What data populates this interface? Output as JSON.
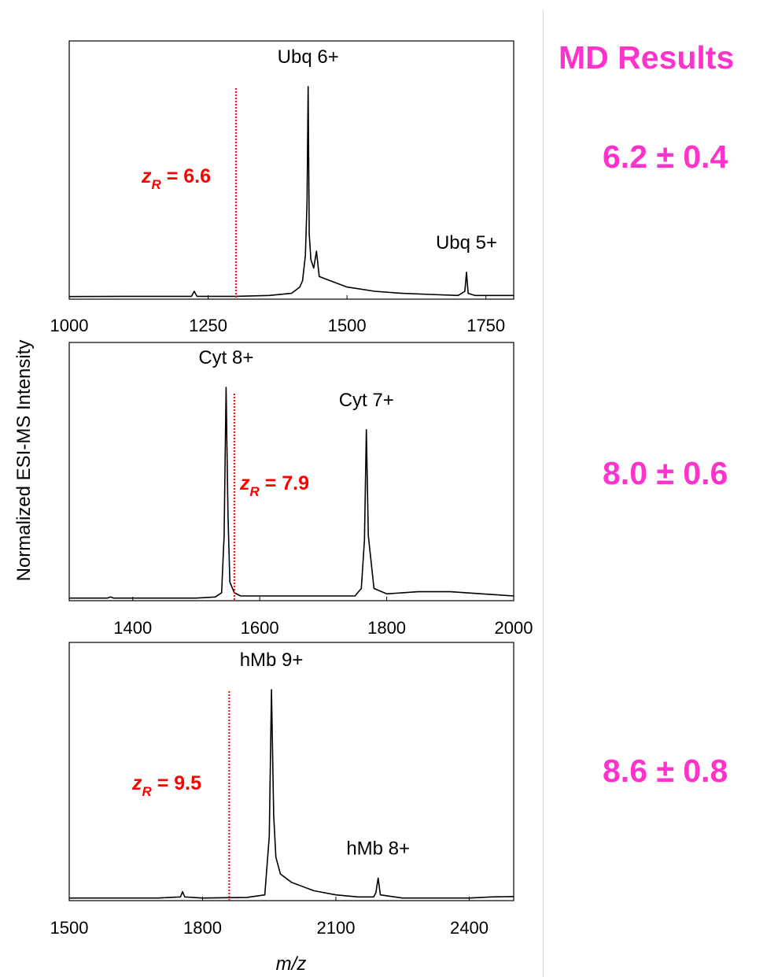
{
  "figure": {
    "ylabel": "Normalized ESI-MS Intensity",
    "xlabel": "m/z"
  },
  "md_results": {
    "title": "MD Results",
    "values": [
      "6.2 ± 0.4",
      "8.0 ± 0.6",
      "8.6 ± 0.8"
    ]
  },
  "colors": {
    "trace": "#000000",
    "annotation_red": "#ff0000",
    "md_pink": "#ff33cc"
  },
  "chart_data": [
    {
      "type": "line",
      "xlim": [
        1000,
        1800
      ],
      "ylim": [
        0,
        1
      ],
      "xticks": [
        1000,
        1250,
        1500,
        1750
      ],
      "grid": false,
      "peak_labels": [
        {
          "text": "Ubq 6+",
          "x": 1430,
          "y": 1.0
        },
        {
          "text": "Ubq 5+",
          "x": 1715,
          "y": 0.12
        }
      ],
      "zR": {
        "subscript": "R",
        "value": "6.6",
        "text": "= 6.6",
        "x": 1300
      },
      "x": [
        1000,
        1100,
        1220,
        1225,
        1230,
        1300,
        1360,
        1400,
        1415,
        1420,
        1425,
        1428,
        1430,
        1432,
        1435,
        1440,
        1445,
        1450,
        1470,
        1500,
        1550,
        1600,
        1650,
        1700,
        1712,
        1715,
        1718,
        1730,
        1800
      ],
      "y": [
        0.005,
        0.006,
        0.006,
        0.03,
        0.006,
        0.006,
        0.01,
        0.02,
        0.05,
        0.08,
        0.2,
        0.45,
        1.0,
        0.3,
        0.18,
        0.14,
        0.22,
        0.1,
        0.08,
        0.05,
        0.03,
        0.02,
        0.015,
        0.01,
        0.03,
        0.12,
        0.02,
        0.01,
        0.01
      ]
    },
    {
      "type": "line",
      "xlim": [
        1300,
        2000
      ],
      "ylim": [
        0,
        1
      ],
      "xticks": [
        1400,
        1600,
        1800,
        2000
      ],
      "grid": false,
      "peak_labels": [
        {
          "text": "Cyt 8+",
          "x": 1547,
          "y": 1.0
        },
        {
          "text": "Cyt 7+",
          "x": 1768,
          "y": 0.8
        }
      ],
      "zR": {
        "subscript": "R",
        "value": "7.9",
        "text": "= 7.9",
        "x": 1560
      },
      "x": [
        1300,
        1360,
        1365,
        1370,
        1500,
        1530,
        1540,
        1544,
        1547,
        1550,
        1553,
        1560,
        1570,
        1600,
        1650,
        1700,
        1750,
        1760,
        1765,
        1768,
        1771,
        1780,
        1800,
        1850,
        1900,
        1950,
        2000
      ],
      "y": [
        0.005,
        0.005,
        0.01,
        0.005,
        0.005,
        0.01,
        0.03,
        0.3,
        1.0,
        0.4,
        0.08,
        0.03,
        0.015,
        0.015,
        0.015,
        0.015,
        0.015,
        0.05,
        0.28,
        0.8,
        0.3,
        0.05,
        0.025,
        0.035,
        0.035,
        0.025,
        0.015
      ]
    },
    {
      "type": "line",
      "xlim": [
        1500,
        2500
      ],
      "ylim": [
        0,
        1
      ],
      "xticks": [
        1500,
        1800,
        2100,
        2400
      ],
      "grid": false,
      "peak_labels": [
        {
          "text": "hMb 9+",
          "x": 1955,
          "y": 1.0
        },
        {
          "text": "hMb 8+",
          "x": 2195,
          "y": 0.1
        }
      ],
      "zR": {
        "subscript": "R",
        "value": "9.5",
        "text": "= 9.5",
        "x": 1860
      },
      "x": [
        1500,
        1700,
        1750,
        1755,
        1760,
        1800,
        1900,
        1940,
        1950,
        1955,
        1960,
        1965,
        1975,
        2000,
        2050,
        2100,
        2150,
        2185,
        2190,
        2195,
        2200,
        2250,
        2300,
        2400,
        2450,
        2500
      ],
      "y": [
        0.005,
        0.005,
        0.01,
        0.035,
        0.01,
        0.005,
        0.008,
        0.02,
        0.3,
        1.0,
        0.4,
        0.2,
        0.12,
        0.08,
        0.04,
        0.02,
        0.01,
        0.01,
        0.03,
        0.1,
        0.02,
        0.005,
        0.005,
        0.005,
        0.01,
        0.012
      ]
    }
  ]
}
